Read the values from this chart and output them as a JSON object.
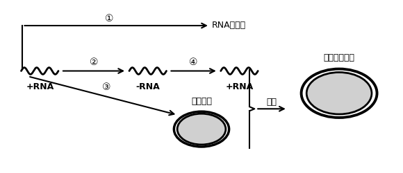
{
  "background_color": "#ffffff",
  "text_color": "#000000",
  "rna_replicase_label": "RNA复制酶",
  "outer_protein_label": "外壳蛋白",
  "assembly_label": "装配",
  "new_virus_label": "新型冠状病毒",
  "plus_rna_label": "+RNA",
  "minus_rna_label": "-RNA",
  "plus_rna2_label": "+RNA",
  "step1": "①",
  "step2": "②",
  "step3": "③",
  "step4": "④",
  "wave_color": "#000000",
  "arrow_color": "#000000",
  "ellipse_edge_color": "#000000",
  "ellipse_fill_color": "#d0d0d0"
}
